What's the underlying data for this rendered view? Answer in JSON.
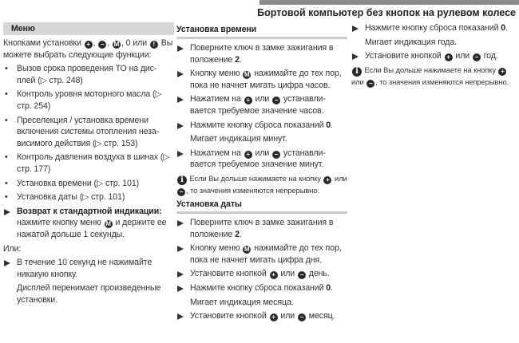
{
  "header": {
    "title": "Бортовой компьютер без кнопок на рулевом колесе"
  },
  "icons": {
    "plus": "+",
    "minus": "−",
    "menu": "M",
    "reset": "!",
    "info": "i"
  },
  "columns": [
    {
      "blocks": [
        {
          "type": "heading-box",
          "parts": [
            {
              "b": "Меню"
            }
          ]
        },
        {
          "type": "para",
          "parts": [
            {
              "t": "Кнопками установки "
            },
            {
              "i": "plus"
            },
            {
              "t": ", "
            },
            {
              "i": "minus"
            },
            {
              "t": ", "
            },
            {
              "i": "menu"
            },
            {
              "t": ", 0 или "
            },
            {
              "i": "reset"
            },
            {
              "t": "  Вы можете выбрать следующие функции:"
            }
          ]
        },
        {
          "type": "bullet",
          "parts": [
            {
              "t": "Вызов срока проведения ТО на дис-плей (▷ стр. 248)"
            }
          ]
        },
        {
          "type": "bullet",
          "parts": [
            {
              "t": "Контроль уровня моторного масла (▷ стр. 254)"
            }
          ]
        },
        {
          "type": "bullet",
          "parts": [
            {
              "t": "Преселекция / установка времени включения системы отопления неза-висимого действия (▷ стр. 153)"
            }
          ]
        },
        {
          "type": "bullet",
          "parts": [
            {
              "t": "Контроль давления воздуха в шинах (▷ стр. 177)"
            }
          ]
        },
        {
          "type": "bullet",
          "parts": [
            {
              "t": "Установка времени (▷ стр. 101)"
            }
          ]
        },
        {
          "type": "bullet",
          "parts": [
            {
              "t": "Установка даты (▷ стр. 101)"
            }
          ]
        },
        {
          "type": "step",
          "parts": [
            {
              "b": "Возврат к стандартной индикации:"
            },
            {
              "t": " нажмите кнопку меню "
            },
            {
              "i": "menu"
            },
            {
              "t": " и держите ее нажатой дольше 1 секунды."
            }
          ]
        },
        {
          "type": "para",
          "parts": [
            {
              "t": "Или:"
            }
          ]
        },
        {
          "type": "step",
          "parts": [
            {
              "t": "В течение 10 секунд не нажимайте никакую кнопку."
            }
          ]
        },
        {
          "type": "indent",
          "parts": [
            {
              "t": "Дисплей перенимает произведенные установки."
            }
          ]
        }
      ]
    },
    {
      "blocks": [
        {
          "type": "heading-line",
          "parts": [
            {
              "b": "Установка времени"
            }
          ]
        },
        {
          "type": "step",
          "parts": [
            {
              "t": "Поверните ключ в замке зажигания в положение "
            },
            {
              "b": "2"
            },
            {
              "t": "."
            }
          ]
        },
        {
          "type": "step",
          "parts": [
            {
              "t": "Кнопку меню "
            },
            {
              "i": "menu"
            },
            {
              "t": " нажимайте до тех пор, пока не начнет мигать цифра часов."
            }
          ]
        },
        {
          "type": "step",
          "parts": [
            {
              "t": "Нажатием на "
            },
            {
              "i": "plus"
            },
            {
              "t": " или "
            },
            {
              "i": "minus"
            },
            {
              "t": " устанавли-вается требуемое значение часов."
            }
          ]
        },
        {
          "type": "step",
          "parts": [
            {
              "t": "Нажмите кнопку сброса показаний "
            },
            {
              "b": "0"
            },
            {
              "t": "."
            }
          ]
        },
        {
          "type": "indent",
          "parts": [
            {
              "t": "Мигает индикация минут."
            }
          ]
        },
        {
          "type": "step",
          "parts": [
            {
              "t": "Нажатием на "
            },
            {
              "i": "plus"
            },
            {
              "t": " или "
            },
            {
              "i": "minus"
            },
            {
              "t": " устанавли-вается требуемое значение минут."
            }
          ]
        },
        {
          "type": "info",
          "parts": [
            {
              "i": "info"
            },
            {
              "t": " Если Вы дольше нажимаете на кнопку "
            },
            {
              "i": "plus"
            },
            {
              "t": " или "
            },
            {
              "i": "minus"
            },
            {
              "t": ", то значения изменяются непрерывно."
            }
          ]
        },
        {
          "type": "heading-line",
          "parts": [
            {
              "b": "Установка даты"
            }
          ]
        },
        {
          "type": "step",
          "parts": [
            {
              "t": "Поверните ключ в замке зажигания в положение "
            },
            {
              "b": "2"
            },
            {
              "t": "."
            }
          ]
        },
        {
          "type": "step",
          "parts": [
            {
              "t": "Кнопку меню "
            },
            {
              "i": "menu"
            },
            {
              "t": " нажимайте до тех пор, пока не начнет мигать цифра дня."
            }
          ]
        },
        {
          "type": "step",
          "parts": [
            {
              "t": "Установите кнопкой "
            },
            {
              "i": "plus"
            },
            {
              "t": " или "
            },
            {
              "i": "minus"
            },
            {
              "t": " день."
            }
          ]
        },
        {
          "type": "step",
          "parts": [
            {
              "t": "Нажмите кнопку сброса показаний "
            },
            {
              "b": "0"
            },
            {
              "t": "."
            }
          ]
        },
        {
          "type": "indent",
          "parts": [
            {
              "t": "Мигает индикация месяца."
            }
          ]
        },
        {
          "type": "step",
          "parts": [
            {
              "t": "Установите кнопкой "
            },
            {
              "i": "plus"
            },
            {
              "t": " или "
            },
            {
              "i": "minus"
            },
            {
              "t": " месяц."
            }
          ]
        }
      ]
    },
    {
      "blocks": [
        {
          "type": "step",
          "parts": [
            {
              "t": "Нажмите кнопку сброса показаний "
            },
            {
              "b": "0"
            },
            {
              "t": "."
            }
          ]
        },
        {
          "type": "indent",
          "parts": [
            {
              "t": "Мигает индикация года."
            }
          ]
        },
        {
          "type": "step",
          "parts": [
            {
              "t": "Установите кнопкой "
            },
            {
              "i": "plus"
            },
            {
              "t": " или "
            },
            {
              "i": "minus"
            },
            {
              "t": " год."
            }
          ]
        },
        {
          "type": "info",
          "parts": [
            {
              "i": "info"
            },
            {
              "t": " Если Вы дольше нажимаете на кнопку "
            },
            {
              "i": "plus"
            },
            {
              "t": " или "
            },
            {
              "i": "minus"
            },
            {
              "t": ", то значения изменяются непрерывно."
            }
          ]
        }
      ]
    }
  ]
}
